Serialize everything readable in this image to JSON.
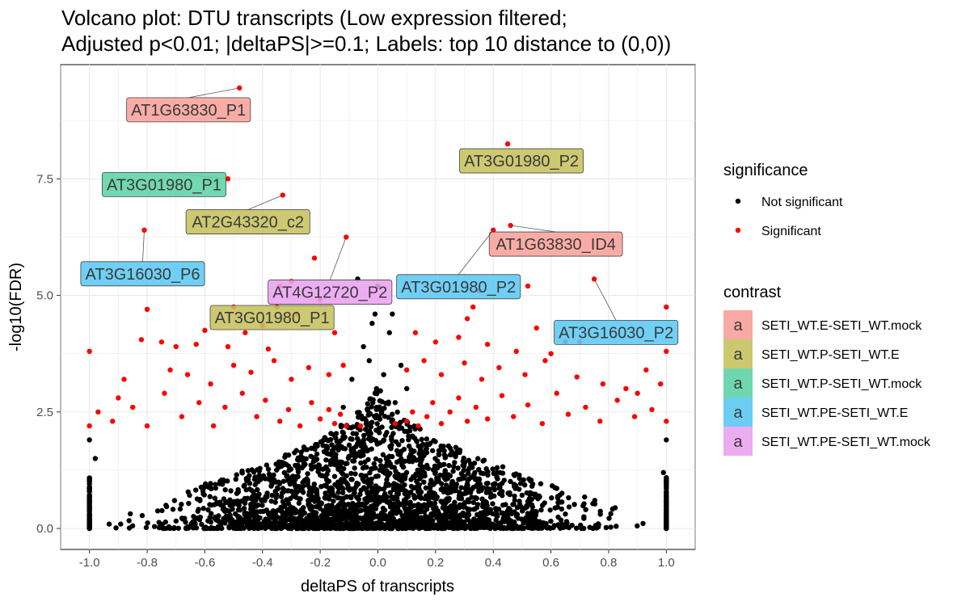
{
  "title_line1": "Volcano plot: DTU transcripts (Low expression filtered;",
  "title_line2": "Adjusted p<0.01; |deltaPS|>=0.1; Labels: top 10 distance to (0,0))",
  "chart_data": {
    "type": "scatter",
    "xlabel": "deltaPS of transcripts",
    "ylabel": "-log10(FDR)",
    "xlim": [
      -1.1,
      1.1
    ],
    "ylim": [
      -0.45,
      9.95
    ],
    "x_ticks": [
      "-1.0",
      "-0.8",
      "-0.6",
      "-0.4",
      "-0.2",
      "0.0",
      "0.2",
      "0.4",
      "0.6",
      "0.8",
      "1.0"
    ],
    "y_ticks": [
      "0.0",
      "2.5",
      "5.0",
      "7.5"
    ],
    "grid": true,
    "colors": {
      "not_significant": "#000000",
      "significant": "#ff0000"
    },
    "significance_legend": {
      "title": "significance",
      "items": [
        {
          "label": "Not significant",
          "color": "#000000"
        },
        {
          "label": "Significant",
          "color": "#ff0000"
        }
      ]
    },
    "contrast_legend": {
      "title": "contrast",
      "items": [
        {
          "label": "SETI_WT.E-SETI_WT.mock",
          "color": "#f8a09a"
        },
        {
          "label": "SETI_WT.P-SETI_WT.E",
          "color": "#c5c25e"
        },
        {
          "label": "SETI_WT.P-SETI_WT.mock",
          "color": "#5fd3a6"
        },
        {
          "label": "SETI_WT.PE-SETI_WT.E",
          "color": "#5cc8f2"
        },
        {
          "label": "SETI_WT.PE-SETI_WT.mock",
          "color": "#eba2f0"
        }
      ]
    },
    "labeled_points": [
      {
        "label": "AT1G63830_P1",
        "x": -0.48,
        "y": 9.45,
        "contrast": 0
      },
      {
        "label": "AT3G01980_P2",
        "x": 0.45,
        "y": 8.25,
        "contrast": 1
      },
      {
        "label": "AT3G01980_P1",
        "x": -0.52,
        "y": 7.5,
        "contrast": 2
      },
      {
        "label": "AT2G43320_c2",
        "x": -0.33,
        "y": 7.15,
        "contrast": 1
      },
      {
        "label": "AT3G16030_P6",
        "x": -0.81,
        "y": 6.4,
        "contrast": 3
      },
      {
        "label": "AT4G12720_P2",
        "x": -0.11,
        "y": 6.25,
        "contrast": 4
      },
      {
        "label": "AT1G63830_ID4",
        "x": 0.46,
        "y": 6.5,
        "contrast": 0
      },
      {
        "label": "AT3G01980_P2",
        "x": 0.4,
        "y": 6.4,
        "contrast": 3
      },
      {
        "label": "AT3G16030_P2",
        "x": 0.75,
        "y": 5.35,
        "contrast": 3
      },
      {
        "label": "AT3G01980_P1",
        "x": -0.35,
        "y": 4.75,
        "contrast": 1
      }
    ],
    "significant_points": [
      [
        -0.22,
        5.8
      ],
      [
        -0.3,
        5.3
      ],
      [
        -0.34,
        5.2
      ],
      [
        0.52,
        5.2
      ],
      [
        0.35,
        5.1
      ],
      [
        -0.2,
        4.9
      ],
      [
        -0.8,
        4.7
      ],
      [
        -0.5,
        4.75
      ],
      [
        0.33,
        4.75
      ],
      [
        0.31,
        4.5
      ],
      [
        -0.28,
        4.6
      ],
      [
        0.65,
        4.0
      ],
      [
        0.7,
        4.0
      ],
      [
        0.55,
        4.3
      ],
      [
        1.0,
        4.75
      ],
      [
        -0.82,
        4.05
      ],
      [
        -0.75,
        4.0
      ],
      [
        -0.6,
        4.25
      ],
      [
        -0.46,
        4.2
      ],
      [
        -0.4,
        4.35
      ],
      [
        -0.15,
        4.2
      ],
      [
        0.13,
        4.2
      ],
      [
        0.2,
        4.0
      ],
      [
        0.28,
        4.1
      ],
      [
        -0.7,
        3.9
      ],
      [
        -0.63,
        3.95
      ],
      [
        -0.52,
        3.9
      ],
      [
        -0.38,
        3.85
      ],
      [
        0.38,
        3.95
      ],
      [
        0.48,
        3.8
      ],
      [
        0.6,
        3.75
      ],
      [
        -1.0,
        3.8
      ],
      [
        1.0,
        3.8
      ],
      [
        -0.88,
        3.2
      ],
      [
        -0.72,
        3.4
      ],
      [
        -0.66,
        3.3
      ],
      [
        -0.58,
        3.1
      ],
      [
        -0.5,
        3.5
      ],
      [
        -0.44,
        3.35
      ],
      [
        -0.36,
        3.6
      ],
      [
        -0.3,
        3.2
      ],
      [
        -0.24,
        3.45
      ],
      [
        -0.17,
        3.3
      ],
      [
        -0.12,
        3.5
      ],
      [
        0.1,
        3.4
      ],
      [
        0.16,
        3.6
      ],
      [
        0.22,
        3.3
      ],
      [
        0.3,
        3.55
      ],
      [
        0.36,
        3.2
      ],
      [
        0.42,
        3.45
      ],
      [
        0.51,
        3.3
      ],
      [
        0.58,
        3.6
      ],
      [
        0.69,
        3.25
      ],
      [
        0.78,
        3.1
      ],
      [
        0.86,
        3.0
      ],
      [
        0.93,
        3.4
      ],
      [
        0.98,
        3.1
      ],
      [
        -0.97,
        2.5
      ],
      [
        -0.92,
        2.3
      ],
      [
        -0.85,
        2.6
      ],
      [
        -0.8,
        2.2
      ],
      [
        -0.74,
        2.9
      ],
      [
        -0.68,
        2.4
      ],
      [
        -0.62,
        2.7
      ],
      [
        -0.57,
        2.2
      ],
      [
        -0.53,
        2.6
      ],
      [
        -0.47,
        2.9
      ],
      [
        -0.42,
        2.4
      ],
      [
        -0.39,
        2.75
      ],
      [
        -0.34,
        2.3
      ],
      [
        -0.31,
        2.55
      ],
      [
        -0.27,
        2.2
      ],
      [
        -0.23,
        2.7
      ],
      [
        -0.2,
        2.35
      ],
      [
        -0.17,
        2.55
      ],
      [
        -0.15,
        2.25
      ],
      [
        -0.13,
        2.45
      ],
      [
        -0.11,
        2.2
      ],
      [
        0.1,
        2.3
      ],
      [
        0.12,
        2.5
      ],
      [
        0.14,
        2.2
      ],
      [
        0.17,
        2.4
      ],
      [
        0.19,
        2.7
      ],
      [
        0.22,
        2.25
      ],
      [
        0.25,
        2.5
      ],
      [
        0.28,
        2.8
      ],
      [
        0.31,
        2.3
      ],
      [
        0.34,
        2.6
      ],
      [
        0.38,
        2.35
      ],
      [
        0.43,
        2.85
      ],
      [
        0.47,
        2.4
      ],
      [
        0.52,
        2.65
      ],
      [
        0.57,
        2.25
      ],
      [
        0.62,
        2.9
      ],
      [
        0.66,
        2.45
      ],
      [
        0.72,
        2.6
      ],
      [
        0.77,
        2.3
      ],
      [
        0.83,
        2.75
      ],
      [
        0.89,
        2.4
      ],
      [
        0.95,
        2.55
      ],
      [
        1.0,
        2.3
      ],
      [
        -1.0,
        2.2
      ],
      [
        -0.9,
        2.8
      ],
      [
        0.9,
        2.9
      ],
      [
        -0.06,
        2.2
      ],
      [
        0.06,
        2.25
      ]
    ]
  }
}
